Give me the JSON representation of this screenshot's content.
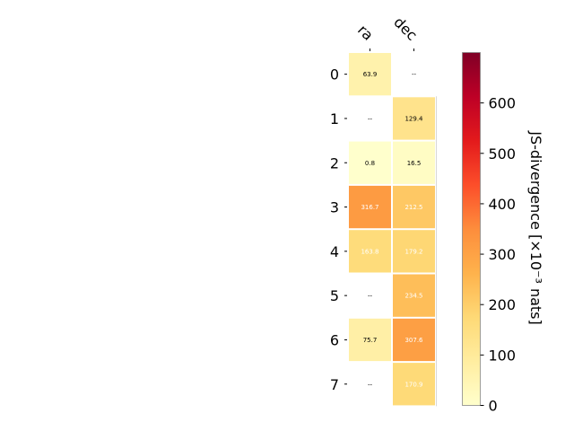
{
  "chart_data": {
    "type": "heatmap",
    "columns": [
      "ra",
      "dec"
    ],
    "rows": [
      "0",
      "1",
      "2",
      "3",
      "4",
      "5",
      "6",
      "7"
    ],
    "values": [
      [
        63.9,
        null
      ],
      [
        null,
        129.4
      ],
      [
        0.8,
        16.5
      ],
      [
        316.7,
        212.5
      ],
      [
        163.8,
        179.2
      ],
      [
        null,
        234.5
      ],
      [
        75.7,
        307.6
      ],
      [
        null,
        170.9
      ]
    ],
    "cell_labels": [
      [
        "63.9",
        "--"
      ],
      [
        "--",
        "129.4"
      ],
      [
        "0.8",
        "16.5"
      ],
      [
        "316.7",
        "212.5"
      ],
      [
        "163.8",
        "179.2"
      ],
      [
        "--",
        "234.5"
      ],
      [
        "75.7",
        "307.6"
      ],
      [
        "--",
        "170.9"
      ]
    ],
    "colorbar": {
      "label": "JS-divergence [×10⁻³ nats]",
      "range": [
        0,
        700
      ],
      "ticks": [
        0,
        100,
        200,
        300,
        400,
        500,
        600
      ],
      "tick_labels": [
        "0",
        "100",
        "200",
        "300",
        "400",
        "500",
        "600"
      ],
      "colormap": "YlOrRd"
    }
  }
}
